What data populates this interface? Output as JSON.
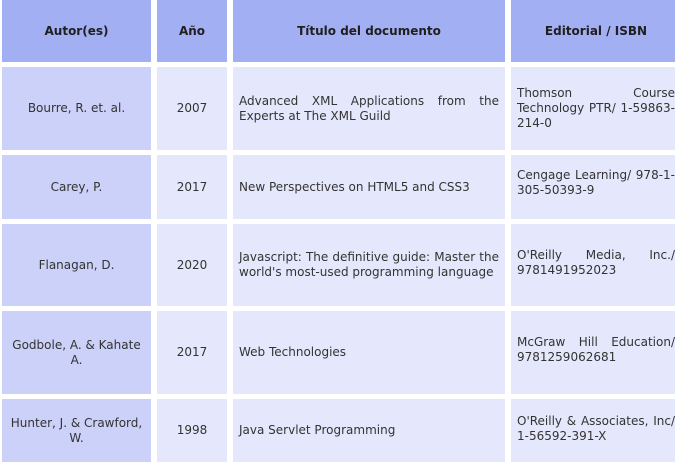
{
  "headers": {
    "author": "Autor(es)",
    "year": "Año",
    "title": "Título del documento",
    "publisher": "Editorial / ISBN"
  },
  "rows": [
    {
      "author": "Bourre, R. et. al.",
      "year": "2007",
      "title": "Advanced XML Applications from the Experts at The XML Guild",
      "publisher": "Thomson Course Technology PTR/ 1-59863-214-0"
    },
    {
      "author": "Carey, P.",
      "year": "2017",
      "title": "New Perspectives on HTML5 and CSS3",
      "publisher": "Cengage Learning/ 978-1-305-50393-9"
    },
    {
      "author": "Flanagan, D.",
      "year": "2020",
      "title": "Javascript: The definitive guide: Master the world's most-used programming language",
      "publisher": "O'Reilly Media, Inc./ 9781491952023"
    },
    {
      "author": "Godbole, A. & Kahate A.",
      "year": "2017",
      "title": "Web Technologies",
      "publisher": "McGraw Hill Education/ 9781259062681"
    },
    {
      "author": "Hunter, J. & Crawford, W.",
      "year": "1998",
      "title": "Java Servlet Programming",
      "publisher": "O'Reilly & Associates, Inc/ 1-56592-391-X"
    }
  ]
}
